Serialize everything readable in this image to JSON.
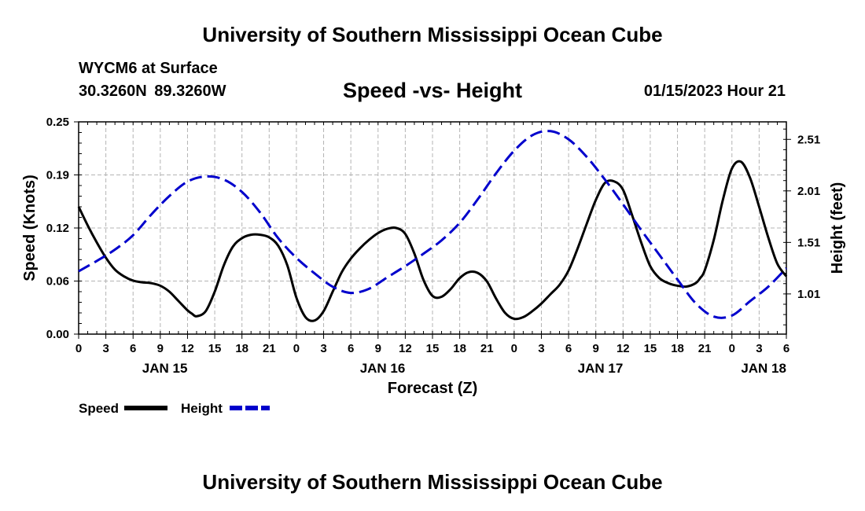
{
  "header": {
    "title": "University of Southern Mississippi Ocean Cube",
    "station": "WYCM6 at Surface",
    "coordinates": "30.3260N  89.3260W",
    "subtitle": "Speed -vs- Height",
    "datetime": "01/15/2023 Hour 21"
  },
  "footer": {
    "title": "University of Southern Mississippi Ocean Cube"
  },
  "chart_data": {
    "type": "line",
    "title": "Speed -vs- Height",
    "xlabel": "Forecast (Z)",
    "ylabel_left": "Speed (Knots)",
    "ylabel_right": "Height (feet)",
    "xlim": [
      0,
      78
    ],
    "ylim_left": [
      0,
      0.25
    ],
    "ylim_right": [
      0.62,
      2.68
    ],
    "grid": true,
    "x_tick_values": [
      0,
      3,
      6,
      9,
      12,
      15,
      18,
      21,
      24,
      27,
      30,
      33,
      36,
      39,
      42,
      45,
      48,
      51,
      54,
      57,
      60,
      63,
      66,
      69,
      72,
      75,
      78
    ],
    "x_tick_labels": [
      "0",
      "3",
      "6",
      "9",
      "12",
      "15",
      "18",
      "21",
      "0",
      "3",
      "6",
      "9",
      "12",
      "15",
      "18",
      "21",
      "0",
      "3",
      "6",
      "9",
      "12",
      "15",
      "18",
      "21",
      "0",
      "3",
      "6"
    ],
    "day_labels": [
      {
        "x": 9.5,
        "label": "JAN 15"
      },
      {
        "x": 33.5,
        "label": "JAN 16"
      },
      {
        "x": 57.5,
        "label": "JAN 17"
      },
      {
        "x": 75.5,
        "label": "JAN 18"
      }
    ],
    "left_ticks": [
      {
        "v": 0.0,
        "label": "0.00"
      },
      {
        "v": 0.0625,
        "label": "0.06"
      },
      {
        "v": 0.125,
        "label": "0.12"
      },
      {
        "v": 0.1875,
        "label": "0.19"
      },
      {
        "v": 0.25,
        "label": "0.25"
      }
    ],
    "right_ticks": [
      {
        "v": 1.01,
        "label": "1.01"
      },
      {
        "v": 1.51,
        "label": "1.51"
      },
      {
        "v": 2.01,
        "label": "2.01"
      },
      {
        "v": 2.51,
        "label": "2.51"
      }
    ],
    "legend": [
      {
        "label": "Speed",
        "color": "#000000",
        "style": "solid"
      },
      {
        "label": "Height",
        "color": "#0000cc",
        "style": "dashed"
      }
    ],
    "series": [
      {
        "name": "Speed",
        "axis": "left",
        "color": "#000000",
        "style": "solid",
        "x": [
          0,
          1,
          2,
          3,
          4,
          5,
          6,
          7,
          8,
          9,
          10,
          11,
          12,
          12.5,
          13,
          14,
          15,
          16,
          17,
          18,
          19,
          20,
          21,
          22,
          23,
          24,
          25,
          26,
          27,
          28,
          29,
          30,
          31,
          32,
          33,
          34,
          35,
          36,
          37,
          38,
          39,
          40,
          41,
          42,
          43,
          44,
          45,
          46,
          47,
          48,
          49,
          50,
          51,
          52,
          53,
          54,
          55,
          56,
          57,
          58,
          59,
          60,
          61,
          62,
          63,
          64,
          65,
          66,
          67,
          68,
          68.5,
          69,
          70,
          71,
          72,
          73,
          74,
          75,
          76,
          77,
          78
        ],
        "values": [
          0.15,
          0.128,
          0.108,
          0.09,
          0.076,
          0.068,
          0.063,
          0.061,
          0.06,
          0.057,
          0.05,
          0.039,
          0.028,
          0.024,
          0.021,
          0.027,
          0.05,
          0.081,
          0.103,
          0.113,
          0.117,
          0.117,
          0.114,
          0.104,
          0.081,
          0.043,
          0.02,
          0.016,
          0.027,
          0.05,
          0.073,
          0.089,
          0.101,
          0.111,
          0.119,
          0.124,
          0.125,
          0.118,
          0.095,
          0.064,
          0.045,
          0.044,
          0.053,
          0.066,
          0.073,
          0.072,
          0.062,
          0.042,
          0.025,
          0.018,
          0.02,
          0.027,
          0.036,
          0.047,
          0.058,
          0.075,
          0.101,
          0.13,
          0.158,
          0.178,
          0.18,
          0.17,
          0.14,
          0.108,
          0.08,
          0.066,
          0.06,
          0.057,
          0.056,
          0.06,
          0.066,
          0.075,
          0.111,
          0.158,
          0.195,
          0.203,
          0.184,
          0.15,
          0.114,
          0.083,
          0.068
        ]
      },
      {
        "name": "Height",
        "axis": "right",
        "color": "#0000cc",
        "style": "dashed",
        "x": [
          0,
          2,
          4,
          6,
          8,
          10,
          12,
          14,
          16,
          18,
          20,
          22,
          24,
          26,
          28,
          30,
          32,
          34,
          36,
          38,
          40,
          42,
          44,
          46,
          48,
          50,
          52,
          54,
          56,
          58,
          60,
          62,
          64,
          66,
          68,
          70,
          72,
          74,
          76,
          78
        ],
        "values": [
          1.23,
          1.33,
          1.44,
          1.58,
          1.78,
          1.96,
          2.1,
          2.15,
          2.12,
          2.0,
          1.8,
          1.55,
          1.36,
          1.21,
          1.08,
          1.02,
          1.06,
          1.17,
          1.28,
          1.4,
          1.53,
          1.7,
          1.93,
          2.18,
          2.4,
          2.55,
          2.59,
          2.51,
          2.34,
          2.12,
          1.88,
          1.63,
          1.39,
          1.15,
          0.92,
          0.79,
          0.8,
          0.94,
          1.08,
          1.26
        ]
      }
    ]
  },
  "chart_layout_note": "layout lives in script"
}
